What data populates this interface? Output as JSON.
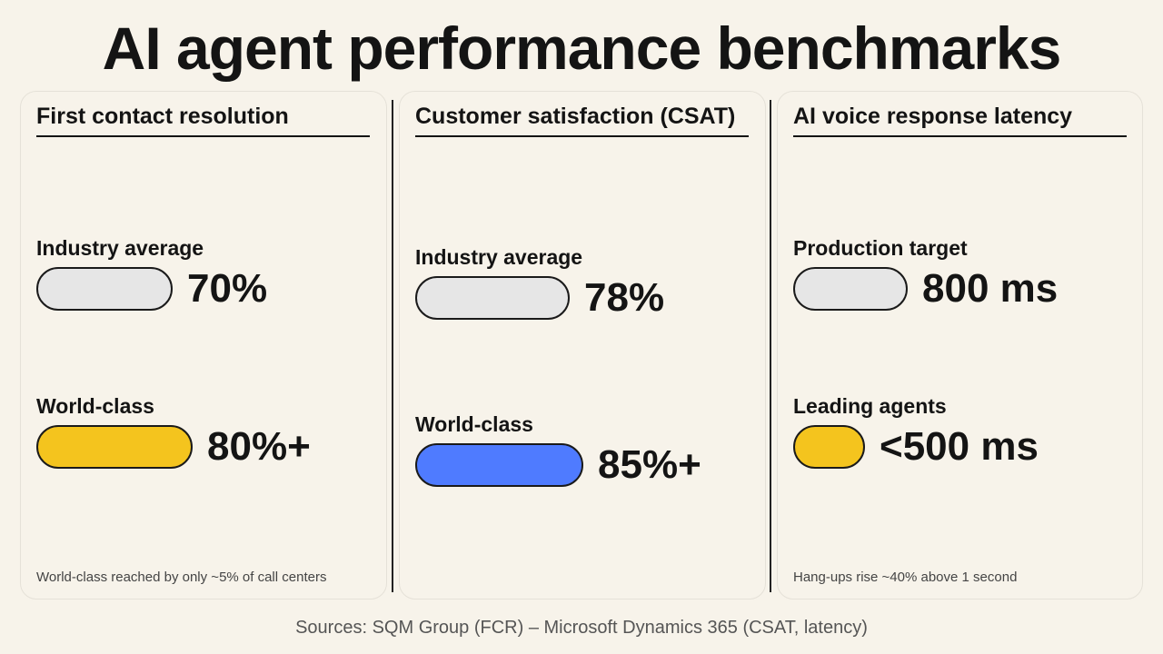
{
  "title": "AI agent performance benchmarks",
  "sources": "Sources: SQM Group (FCR) – Microsoft Dynamics 365 (CSAT, latency)",
  "colors": {
    "background": "#f7f3ea",
    "baseline_fill": "#e6e6e6",
    "highlight_yellow": "#f4c41e",
    "highlight_blue": "#4f7bff"
  },
  "chart_data": [
    {
      "type": "bar",
      "title": "First contact resolution",
      "unit": "%",
      "categories": [
        "Industry average",
        "World-class"
      ],
      "values": [
        70,
        80
      ],
      "value_labels": [
        "70%",
        "80%+"
      ],
      "note": "World-class reached by only ~5% of call centers"
    },
    {
      "type": "bar",
      "title": "Customer satisfaction (CSAT)",
      "unit": "%",
      "categories": [
        "Industry average",
        "World-class"
      ],
      "values": [
        78,
        85
      ],
      "value_labels": [
        "78%",
        "85%+"
      ],
      "note": ""
    },
    {
      "type": "bar",
      "title": "AI voice response latency",
      "unit": "ms",
      "categories": [
        "Production target",
        "Leading agents"
      ],
      "values": [
        800,
        500
      ],
      "value_labels": [
        "800 ms",
        "<500 ms"
      ],
      "note": "Hang-ups rise ~40% above 1 second"
    }
  ]
}
